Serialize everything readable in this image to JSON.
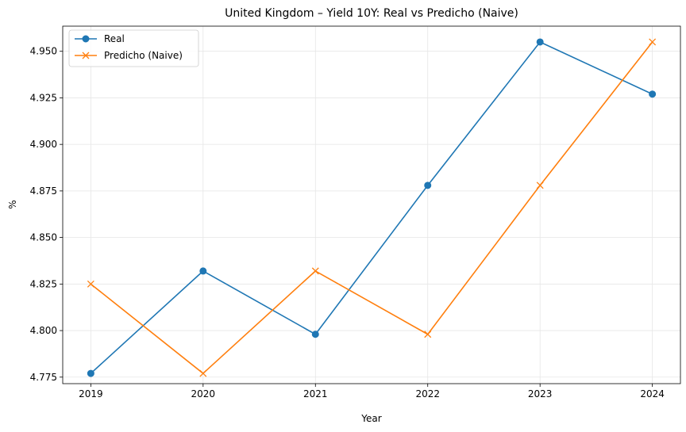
{
  "chart_data": {
    "type": "line",
    "title": "United Kingdom – Yield 10Y: Real vs Predicho (Naive)",
    "xlabel": "Year",
    "ylabel": "%",
    "x": [
      2019,
      2020,
      2021,
      2022,
      2023,
      2024
    ],
    "x_tick_labels": [
      "2019",
      "2020",
      "2021",
      "2022",
      "2023",
      "2024"
    ],
    "xlim": [
      2018.75,
      2024.25
    ],
    "ylim": [
      4.7715,
      4.9635
    ],
    "y_ticks": [
      4.775,
      4.8,
      4.825,
      4.85,
      4.875,
      4.9,
      4.925,
      4.95
    ],
    "y_tick_labels": [
      "4.775",
      "4.800",
      "4.825",
      "4.850",
      "4.875",
      "4.900",
      "4.925",
      "4.950"
    ],
    "grid": true,
    "legend_position": "top-left",
    "series": [
      {
        "name": "Real",
        "color": "#1f77b4",
        "marker": "circle",
        "values": [
          4.777,
          4.832,
          4.798,
          4.878,
          4.955,
          4.927
        ]
      },
      {
        "name": "Predicho (Naive)",
        "color": "#ff7f0e",
        "marker": "x",
        "values": [
          4.825,
          4.777,
          4.832,
          4.798,
          4.878,
          4.955
        ]
      }
    ]
  }
}
